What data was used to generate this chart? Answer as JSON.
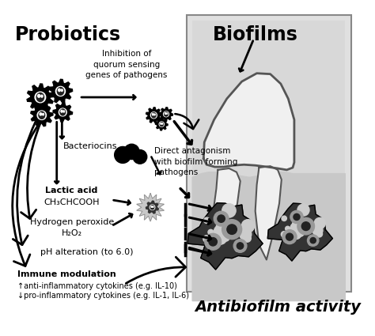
{
  "title_left": "Probiotics",
  "title_right": "Biofilms",
  "bottom_text": "Antibiofilm activity",
  "bg_color": "#ffffff",
  "text_color": "#000000",
  "figsize": [
    4.74,
    4.25
  ],
  "dpi": 100,
  "mech1": "Inhibition of\nquorum sensing\ngenes of pathogens",
  "mech2": "Bacteriocins",
  "mech3": "Direct antagonism\nwith biofilm forming\npathogens",
  "mech4_line1": "Lactic acid",
  "mech4_line2": "CH₃CHCOOH",
  "mech5_line1": "Hydrogen peroxide",
  "mech5_line2": "H₂O₂",
  "mech6": "pH alteration (to 6.0)",
  "mech7_bold": "Immune modulation",
  "mech7_line1": "↑anti-inflammatory cytokines (e.g. IL-10)",
  "mech7_line2": "↓pro-inflammatory cytokines (e.g. IL-1, IL-6)"
}
